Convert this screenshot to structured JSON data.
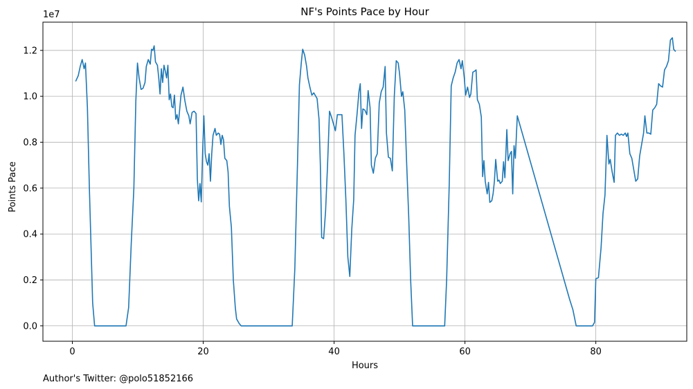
{
  "chart_data": {
    "type": "line",
    "title": "NF's Points Pace by Hour",
    "xlabel": "Hours",
    "ylabel": "Points Pace",
    "offset_text": "1e7",
    "footer": "Author's Twitter: @polo51852166",
    "xlim": [
      -4.5,
      93.9
    ],
    "ylim": [
      -670000,
      13230000
    ],
    "x_ticks": [
      0,
      20,
      40,
      60,
      80
    ],
    "y_ticks": [
      0.0,
      0.2,
      0.4,
      0.6,
      0.8,
      1.0,
      1.2
    ],
    "y_tick_labels": [
      "0.0",
      "0.2",
      "0.4",
      "0.6",
      "0.8",
      "1.0",
      "1.2"
    ],
    "grid": true,
    "line_color": "#1f77b4",
    "series": [
      {
        "points": [
          [
            0.5,
            10650000
          ],
          [
            0.9,
            10900000
          ],
          [
            1.2,
            11300000
          ],
          [
            1.5,
            11600000
          ],
          [
            1.8,
            11200000
          ],
          [
            2.0,
            11450000
          ],
          [
            2.3,
            9500000
          ],
          [
            2.6,
            6000000
          ],
          [
            2.9,
            3000000
          ],
          [
            3.1,
            1000000
          ],
          [
            3.4,
            0
          ],
          [
            4,
            0
          ],
          [
            5,
            0
          ],
          [
            6,
            0
          ],
          [
            7,
            0
          ],
          [
            8.2,
            0
          ],
          [
            8.6,
            800000
          ],
          [
            9.0,
            3600000
          ],
          [
            9.4,
            6000000
          ],
          [
            9.7,
            9800000
          ],
          [
            9.95,
            11450000
          ],
          [
            10.2,
            10800000
          ],
          [
            10.5,
            10300000
          ],
          [
            10.8,
            10350000
          ],
          [
            11.1,
            10600000
          ],
          [
            11.3,
            11300000
          ],
          [
            11.6,
            11600000
          ],
          [
            11.9,
            11400000
          ],
          [
            12.1,
            12050000
          ],
          [
            12.3,
            12000000
          ],
          [
            12.5,
            12200000
          ],
          [
            12.7,
            11500000
          ],
          [
            13.0,
            11350000
          ],
          [
            13.2,
            10800000
          ],
          [
            13.4,
            10100000
          ],
          [
            13.6,
            11200000
          ],
          [
            13.8,
            10600000
          ],
          [
            14.0,
            11350000
          ],
          [
            14.2,
            11100000
          ],
          [
            14.4,
            10800000
          ],
          [
            14.6,
            11350000
          ],
          [
            14.8,
            9850000
          ],
          [
            15.0,
            10100000
          ],
          [
            15.2,
            9550000
          ],
          [
            15.4,
            9500000
          ],
          [
            15.6,
            10050000
          ],
          [
            15.8,
            9000000
          ],
          [
            16.0,
            9200000
          ],
          [
            16.2,
            8800000
          ],
          [
            16.6,
            10050000
          ],
          [
            16.9,
            10400000
          ],
          [
            17.2,
            9800000
          ],
          [
            17.5,
            9350000
          ],
          [
            17.8,
            9150000
          ],
          [
            18.0,
            8800000
          ],
          [
            18.3,
            9300000
          ],
          [
            18.6,
            9350000
          ],
          [
            18.9,
            9250000
          ],
          [
            19.1,
            6400000
          ],
          [
            19.3,
            5450000
          ],
          [
            19.5,
            6200000
          ],
          [
            19.7,
            5400000
          ],
          [
            19.9,
            7500000
          ],
          [
            20.1,
            9150000
          ],
          [
            20.3,
            7500000
          ],
          [
            20.5,
            7150000
          ],
          [
            20.7,
            7000000
          ],
          [
            20.9,
            7500000
          ],
          [
            21.1,
            6300000
          ],
          [
            21.3,
            7500000
          ],
          [
            21.5,
            8300000
          ],
          [
            21.8,
            8600000
          ],
          [
            22.0,
            8300000
          ],
          [
            22.3,
            8400000
          ],
          [
            22.5,
            8350000
          ],
          [
            22.7,
            7900000
          ],
          [
            22.9,
            8300000
          ],
          [
            23.1,
            8100000
          ],
          [
            23.3,
            7300000
          ],
          [
            23.6,
            7200000
          ],
          [
            23.8,
            6700000
          ],
          [
            24.0,
            5200000
          ],
          [
            24.3,
            4300000
          ],
          [
            24.6,
            2000000
          ],
          [
            24.9,
            800000
          ],
          [
            25.1,
            300000
          ],
          [
            25.5,
            100000
          ],
          [
            25.8,
            0
          ],
          [
            27,
            0
          ],
          [
            28,
            0
          ],
          [
            29,
            0
          ],
          [
            30,
            0
          ],
          [
            31,
            0
          ],
          [
            32,
            0
          ],
          [
            33,
            0
          ],
          [
            33.6,
            0
          ],
          [
            34.0,
            2500000
          ],
          [
            34.4,
            7000000
          ],
          [
            34.7,
            10500000
          ],
          [
            35.0,
            11500000
          ],
          [
            35.2,
            12050000
          ],
          [
            35.5,
            11800000
          ],
          [
            35.8,
            11300000
          ],
          [
            36.0,
            10800000
          ],
          [
            36.3,
            10400000
          ],
          [
            36.6,
            10050000
          ],
          [
            36.9,
            10150000
          ],
          [
            37.2,
            10000000
          ],
          [
            37.4,
            9900000
          ],
          [
            37.7,
            9000000
          ],
          [
            37.9,
            7000000
          ],
          [
            38.1,
            3850000
          ],
          [
            38.4,
            3800000
          ],
          [
            38.7,
            5000000
          ],
          [
            39.0,
            7000000
          ],
          [
            39.3,
            9350000
          ],
          [
            39.6,
            9100000
          ],
          [
            39.9,
            8800000
          ],
          [
            40.2,
            8500000
          ],
          [
            40.5,
            9200000
          ],
          [
            40.8,
            9200000
          ],
          [
            41.2,
            9200000
          ],
          [
            41.5,
            7500000
          ],
          [
            41.8,
            5500000
          ],
          [
            42.1,
            3000000
          ],
          [
            42.4,
            2150000
          ],
          [
            42.7,
            4200000
          ],
          [
            43.0,
            5500000
          ],
          [
            43.2,
            8300000
          ],
          [
            43.5,
            9200000
          ],
          [
            43.8,
            10200000
          ],
          [
            44.0,
            10550000
          ],
          [
            44.2,
            8600000
          ],
          [
            44.4,
            9450000
          ],
          [
            44.7,
            9400000
          ],
          [
            45.0,
            9200000
          ],
          [
            45.2,
            10250000
          ],
          [
            45.5,
            9500000
          ],
          [
            45.7,
            7000000
          ],
          [
            46.0,
            6650000
          ],
          [
            46.3,
            7300000
          ],
          [
            46.6,
            7500000
          ],
          [
            46.9,
            9700000
          ],
          [
            47.2,
            10200000
          ],
          [
            47.5,
            10400000
          ],
          [
            47.8,
            11300000
          ],
          [
            48.0,
            8400000
          ],
          [
            48.3,
            7350000
          ],
          [
            48.6,
            7300000
          ],
          [
            48.9,
            6750000
          ],
          [
            49.2,
            10000000
          ],
          [
            49.5,
            11550000
          ],
          [
            49.8,
            11450000
          ],
          [
            50.0,
            11000000
          ],
          [
            50.3,
            10000000
          ],
          [
            50.5,
            10200000
          ],
          [
            50.8,
            9400000
          ],
          [
            51.1,
            7000000
          ],
          [
            51.4,
            4800000
          ],
          [
            51.7,
            2000000
          ],
          [
            52.0,
            0
          ],
          [
            53,
            0
          ],
          [
            54,
            0
          ],
          [
            55,
            0
          ],
          [
            56,
            0
          ],
          [
            56.9,
            0
          ],
          [
            57.2,
            2000000
          ],
          [
            57.6,
            6200000
          ],
          [
            57.9,
            10450000
          ],
          [
            58.2,
            10800000
          ],
          [
            58.5,
            11050000
          ],
          [
            58.8,
            11450000
          ],
          [
            59.1,
            11600000
          ],
          [
            59.4,
            11200000
          ],
          [
            59.6,
            11550000
          ],
          [
            59.9,
            10800000
          ],
          [
            60.1,
            10050000
          ],
          [
            60.4,
            10400000
          ],
          [
            60.7,
            9950000
          ],
          [
            60.9,
            10100000
          ],
          [
            61.2,
            11050000
          ],
          [
            61.5,
            11100000
          ],
          [
            61.7,
            11150000
          ],
          [
            61.9,
            9850000
          ],
          [
            62.2,
            9650000
          ],
          [
            62.5,
            9100000
          ],
          [
            62.7,
            6500000
          ],
          [
            62.9,
            7200000
          ],
          [
            63.1,
            6300000
          ],
          [
            63.4,
            5750000
          ],
          [
            63.6,
            6250000
          ],
          [
            63.8,
            5380000
          ],
          [
            64.1,
            5450000
          ],
          [
            64.3,
            5750000
          ],
          [
            64.5,
            6300000
          ],
          [
            64.7,
            7250000
          ],
          [
            65.0,
            6300000
          ],
          [
            65.2,
            6350000
          ],
          [
            65.4,
            6200000
          ],
          [
            65.7,
            6300000
          ],
          [
            65.9,
            7150000
          ],
          [
            66.1,
            6450000
          ],
          [
            66.4,
            8550000
          ],
          [
            66.6,
            7200000
          ],
          [
            66.9,
            7500000
          ],
          [
            67.1,
            7600000
          ],
          [
            67.3,
            5750000
          ],
          [
            67.5,
            7850000
          ],
          [
            67.7,
            7300000
          ],
          [
            68.0,
            9150000
          ],
          [
            76.0,
            1150000
          ],
          [
            76.5,
            700000
          ],
          [
            77.0,
            0
          ],
          [
            78.0,
            0
          ],
          [
            79.0,
            0
          ],
          [
            79.5,
            0
          ],
          [
            79.8,
            150000
          ],
          [
            80.0,
            2050000
          ],
          [
            80.4,
            2100000
          ],
          [
            80.8,
            3400000
          ],
          [
            81.1,
            4900000
          ],
          [
            81.4,
            5700000
          ],
          [
            81.7,
            8300000
          ],
          [
            82.0,
            7050000
          ],
          [
            82.2,
            7250000
          ],
          [
            82.5,
            6700000
          ],
          [
            82.8,
            6250000
          ],
          [
            83.0,
            8300000
          ],
          [
            83.3,
            8400000
          ],
          [
            83.6,
            8300000
          ],
          [
            83.9,
            8350000
          ],
          [
            84.2,
            8300000
          ],
          [
            84.5,
            8400000
          ],
          [
            84.7,
            8250000
          ],
          [
            84.9,
            8400000
          ],
          [
            85.2,
            7500000
          ],
          [
            85.5,
            7300000
          ],
          [
            85.8,
            6800000
          ],
          [
            86.1,
            6300000
          ],
          [
            86.4,
            6400000
          ],
          [
            86.7,
            7400000
          ],
          [
            87.0,
            7900000
          ],
          [
            87.3,
            8400000
          ],
          [
            87.5,
            9150000
          ],
          [
            87.8,
            8400000
          ],
          [
            88.1,
            8400000
          ],
          [
            88.4,
            8350000
          ],
          [
            88.7,
            9400000
          ],
          [
            89.0,
            9500000
          ],
          [
            89.3,
            9650000
          ],
          [
            89.6,
            10550000
          ],
          [
            89.9,
            10450000
          ],
          [
            90.2,
            10400000
          ],
          [
            90.5,
            11150000
          ],
          [
            90.8,
            11300000
          ],
          [
            91.1,
            11550000
          ],
          [
            91.4,
            12450000
          ],
          [
            91.7,
            12550000
          ],
          [
            91.9,
            12050000
          ],
          [
            92.2,
            11950000
          ]
        ]
      }
    ]
  }
}
